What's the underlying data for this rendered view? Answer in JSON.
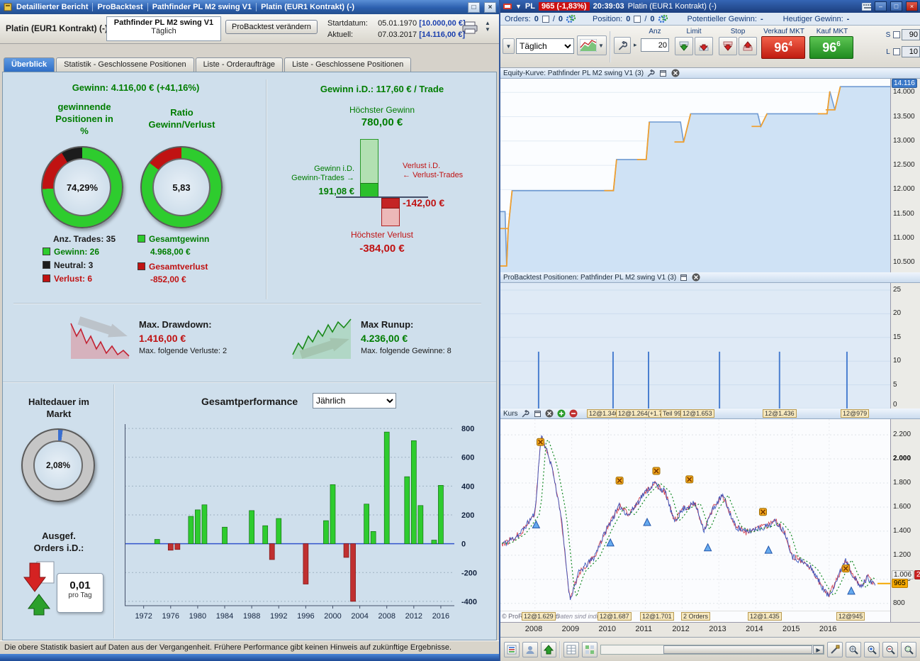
{
  "colors": {
    "panel_bg": "#cfdfec",
    "accent_blue": "#3a78c8",
    "green": "#007d00",
    "bright_green": "#2ecc2e",
    "red": "#c01212",
    "sell_red": "#d92414",
    "buy_green": "#2a9c2a",
    "badge_orange": "#f5a800"
  },
  "left_window": {
    "titlebar_tabs": [
      "Detaillierter Bericht",
      "ProBacktest",
      "Pathfinder PL M2 swing V1",
      "Platin (EUR1 Kontrakt) (-)"
    ],
    "header": {
      "instrument": "Platin (EUR1 Kontrakt) (-)",
      "strategy": "Pathfinder PL M2 swing V1",
      "timeframe": "Täglich",
      "edit_button": "ProBacktest verändern",
      "start_label": "Startdatum:",
      "start_date": "05.01.1970",
      "start_value": "[10.000,00 €]",
      "current_label": "Aktuell:",
      "current_date": "07.03.2017",
      "current_value": "[14.116,00 €]"
    },
    "tabs": [
      "Überblick",
      "Statistik - Geschlossene Positionen",
      "Liste - Orderaufträge",
      "Liste - Geschlossene Positionen"
    ],
    "overview": {
      "gewinn_label": "Gewinn:",
      "gewinn_value": "4.116,00 €",
      "gewinn_pct": "(+41,16%)",
      "winning_label_1": "gewinnende",
      "winning_label_2": "Positionen in",
      "winning_label_3": "%",
      "winning_value": "74,29%",
      "ratio_label_1": "Ratio",
      "ratio_label_2": "Gewinn/Verlust",
      "ratio_value": "5,83",
      "anz_trades": "Anz. Trades: 35",
      "legend": [
        {
          "label": "Gewinn: 26",
          "color": "#2ecc2e",
          "text_color": "#007d00"
        },
        {
          "label": "Neutral: 3",
          "color": "#1c1c1c",
          "text_color": "#1a1a1a"
        },
        {
          "label": "Verlust: 6",
          "color": "#c01212",
          "text_color": "#c01212"
        }
      ],
      "gesamtgewinn_label": "Gesamtgewinn",
      "gesamtgewinn_value": "4.968,00 €",
      "gesamtverlust_label": "Gesamtverlust",
      "gesamtverlust_value": "-852,00 €",
      "gewinn_id_label": "Gewinn i.D.:",
      "gewinn_id_value": "117,60 € / Trade",
      "hoechster_gewinn_label": "Höchster Gewinn",
      "hoechster_gewinn_value": "780,00 €",
      "gewinn_trades_label_1": "Gewinn i.D.",
      "gewinn_trades_label_2": "Gewinn-Trades",
      "gewinn_trades_value": "191,08 €",
      "verlust_trades_label_1": "Verlust i.D.",
      "verlust_trades_label_2": "Verlust-Trades",
      "verlust_trades_value": "-142,00 €",
      "hoechster_verlust_label": "Höchster Verlust",
      "hoechster_verlust_value": "-384,00 €"
    },
    "risk": {
      "drawdown_label": "Max. Drawdown:",
      "drawdown_value": "1.416,00 €",
      "drawdown_sub": "Max. folgende Verluste: 2",
      "runup_label": "Max Runup:",
      "runup_value": "4.236,00 €",
      "runup_sub": "Max. folgende Gewinne: 8"
    },
    "holding": {
      "label_1": "Haltedauer im",
      "label_2": "Markt",
      "value": "2,08%",
      "orders_label_1": "Ausgef.",
      "orders_label_2": "Orders i.D.:",
      "orders_value": "0,01",
      "orders_unit": "pro Tag"
    },
    "performance_title": "Gesamtperformance",
    "performance_period": "Jährlich",
    "statusbar": "Die obere Statistik basiert auf Daten aus der Vergangenheit. Frühere Performance gibt keinen Hinweis auf zukünftige Ergebnisse."
  },
  "right_window": {
    "titlebar": {
      "symbol": "PL",
      "price_badge": "965 (-1,83%)",
      "time": "20:39:03",
      "instrument": "Platin (EUR1 Kontrakt) (-)"
    },
    "status_row": {
      "orders_label": "Orders:",
      "orders_count": "0",
      "orders_count2": "0",
      "position_label": "Position:",
      "position_count": "0",
      "position_count2": "0",
      "pot_label": "Potentieller Gewinn:",
      "pot_value": "-",
      "heut_label": "Heutiger Gewinn:",
      "heut_value": "-"
    },
    "toolbar": {
      "timeframe": "Täglich",
      "anz_label": "Anz",
      "anz_value": "20",
      "limit_label": "Limit",
      "stop_label": "Stop",
      "sell_label": "Verkauf MKT",
      "sell_big": "96",
      "sell_small": "4",
      "buy_label": "Kauf MKT",
      "buy_big": "96",
      "buy_small": "6",
      "s_label": "S",
      "s_value": "90",
      "l_label": "L",
      "l_value": "10"
    },
    "equity_panel_title": "Equity-Kurve: Pathfinder PL M2 swing V1 (3)",
    "positions_panel_title": "ProBacktest Positionen: Pathfinder PL M2 swing V1 (3)",
    "price_panel": {
      "title": "Kurs",
      "top_labels": [
        {
          "text": "12@1.346",
          "x": 122
        },
        {
          "text": "12@1.264(+1.7)",
          "x": 163
        },
        {
          "text": "Teil 99+",
          "x": 226
        },
        {
          "text": "12@1.653",
          "x": 254
        },
        {
          "text": "12@1.436",
          "x": 370
        },
        {
          "text": "12@979",
          "x": 480
        }
      ],
      "bottom_labels": [
        {
          "text": "12@1.629",
          "x": 30
        },
        {
          "text": "12@1.687",
          "x": 137
        },
        {
          "text": "12@1.701",
          "x": 197
        },
        {
          "text": "2 Orders",
          "x": 255
        },
        {
          "text": "12@1.435",
          "x": 349
        },
        {
          "text": "12@945",
          "x": 474
        }
      ],
      "copyright": "© ProRealTime.com",
      "disclaimer": "Daten sind indikativ",
      "axis_badges": [
        {
          "text": "1.006",
          "bg": "#f0f0f0",
          "fg": "#222222",
          "value": 1035
        },
        {
          "text": "28",
          "bg": "#cc2222",
          "fg": "#ffffff",
          "value": 1035
        },
        {
          "text": "965",
          "bg": "#f5a800",
          "fg": "#000000",
          "value": 965
        }
      ]
    }
  },
  "chart_data": [
    {
      "id": "winning_positions_donut",
      "type": "pie",
      "title": "gewinnende Positionen in %",
      "labels": [
        "Gewinn",
        "Verlust",
        "Neutral"
      ],
      "values": [
        74.29,
        17.14,
        8.57
      ],
      "colors": [
        "#2ecc2e",
        "#c01212",
        "#1c1c1c"
      ],
      "center_label": "74,29%"
    },
    {
      "id": "ratio_donut",
      "type": "pie",
      "title": "Ratio Gewinn/Verlust",
      "labels": [
        "Gesamtgewinn",
        "Gesamtverlust"
      ],
      "values": [
        85.36,
        14.64
      ],
      "colors": [
        "#2ecc2e",
        "#c01212"
      ],
      "center_label": "5,83"
    },
    {
      "id": "holding_donut",
      "type": "pie",
      "title": "Haltedauer im Markt",
      "labels": [
        "im Markt",
        "nicht im Markt"
      ],
      "values": [
        2.08,
        97.92
      ],
      "colors": [
        "#3a6fd0",
        "#c6c6c6"
      ],
      "center_label": "2,08%"
    },
    {
      "id": "avg_trade_bars",
      "type": "bar",
      "title": "Gewinn i.D.: 117,60 € / Trade",
      "categories": [
        "Höchster Gewinn",
        "Gewinn i.D. Gewinn-Trades",
        "Verlust i.D. Verlust-Trades",
        "Höchster Verlust"
      ],
      "values": [
        780,
        191.08,
        -142,
        -384
      ]
    },
    {
      "id": "yearly_performance",
      "type": "bar",
      "title": "Gesamtperformance (Jährlich)",
      "x": [
        1974,
        1976,
        1977,
        1979,
        1980,
        1981,
        1984,
        1988,
        1990,
        1991,
        1992,
        1996,
        1999,
        2000,
        2002,
        2003,
        2005,
        2006,
        2008,
        2011,
        2012,
        2013,
        2015,
        2016
      ],
      "values": [
        30,
        -45,
        -40,
        190,
        235,
        270,
        115,
        230,
        125,
        -110,
        175,
        -280,
        160,
        410,
        -95,
        -400,
        275,
        85,
        775,
        465,
        715,
        265,
        25,
        405
      ],
      "xticks": [
        1972,
        1976,
        1980,
        1984,
        1988,
        1992,
        1996,
        2000,
        2004,
        2008,
        2012,
        2016
      ],
      "yticks": [
        800,
        600,
        400,
        200,
        0,
        -200,
        -400
      ],
      "xlim": [
        1969.2,
        2018
      ],
      "ylim": [
        -430,
        830
      ],
      "pos_color": "#2ecc2e",
      "neg_color": "#c03030",
      "zero_line_color": "#3355cc"
    },
    {
      "id": "equity_curve",
      "type": "area",
      "title": "Equity-Kurve: Pathfinder PL M2 swing V1 (3)",
      "points": [
        [
          0.0,
          11550
        ],
        [
          0.012,
          11550
        ],
        [
          0.016,
          10430
        ],
        [
          0.02,
          11200
        ],
        [
          0.03,
          11980
        ],
        [
          0.29,
          11980
        ],
        [
          0.298,
          12620
        ],
        [
          0.374,
          12620
        ],
        [
          0.382,
          13390
        ],
        [
          0.462,
          13390
        ],
        [
          0.47,
          12980
        ],
        [
          0.488,
          13560
        ],
        [
          0.66,
          13560
        ],
        [
          0.668,
          13300
        ],
        [
          0.684,
          13560
        ],
        [
          0.838,
          13560
        ],
        [
          0.845,
          14020
        ],
        [
          0.858,
          13640
        ],
        [
          0.872,
          14116
        ],
        [
          1.0,
          14116
        ]
      ],
      "ylim": [
        10300,
        14280
      ],
      "yticks": [
        14000,
        13500,
        13000,
        12500,
        12000,
        11500,
        11000,
        10500
      ],
      "current": 14116,
      "line_color": "#6f9ad2",
      "fill_color": "#cfe2f5",
      "open_trade_color": "#f0a030"
    },
    {
      "id": "open_positions",
      "type": "bar",
      "title": "ProBacktest Positionen: Pathfinder PL M2 swing V1 (3)",
      "x": [
        0.098,
        0.289,
        0.38,
        0.562,
        0.716,
        0.889
      ],
      "values": [
        12,
        12,
        12,
        12,
        12,
        12
      ],
      "ylim": [
        0,
        26.5
      ],
      "yticks": [
        25,
        20,
        15,
        10,
        5,
        0
      ],
      "color": "#4a7fd0"
    },
    {
      "id": "price_chart",
      "type": "candlestick",
      "title": "Kurs Platin (EUR1 Kontrakt) Täglich",
      "x_range": [
        2007.06,
        2017.66
      ],
      "ylim": [
        740,
        2330
      ],
      "yticks": [
        2200,
        2000,
        1800,
        1600,
        1400,
        1200,
        1000,
        800
      ],
      "xticks": [
        2008,
        2009,
        2010,
        2011,
        2012,
        2013,
        2014,
        2015,
        2016
      ],
      "waypoints": [
        [
          2007.2,
          1300
        ],
        [
          2007.6,
          1380
        ],
        [
          2008.0,
          1550
        ],
        [
          2008.17,
          2200
        ],
        [
          2008.45,
          1950
        ],
        [
          2008.7,
          1550
        ],
        [
          2008.95,
          830
        ],
        [
          2009.2,
          1060
        ],
        [
          2009.6,
          1180
        ],
        [
          2009.95,
          1420
        ],
        [
          2010.3,
          1610
        ],
        [
          2010.55,
          1530
        ],
        [
          2010.9,
          1690
        ],
        [
          2011.25,
          1800
        ],
        [
          2011.55,
          1720
        ],
        [
          2011.78,
          1480
        ],
        [
          2012.05,
          1590
        ],
        [
          2012.35,
          1630
        ],
        [
          2012.6,
          1410
        ],
        [
          2012.85,
          1590
        ],
        [
          2013.1,
          1700
        ],
        [
          2013.45,
          1440
        ],
        [
          2013.75,
          1390
        ],
        [
          2014.0,
          1420
        ],
        [
          2014.3,
          1440
        ],
        [
          2014.55,
          1480
        ],
        [
          2014.8,
          1390
        ],
        [
          2015.0,
          1190
        ],
        [
          2015.3,
          1140
        ],
        [
          2015.55,
          1080
        ],
        [
          2015.8,
          940
        ],
        [
          2015.98,
          860
        ],
        [
          2016.2,
          990
        ],
        [
          2016.45,
          1170
        ],
        [
          2016.65,
          1030
        ],
        [
          2016.85,
          930
        ],
        [
          2017.05,
          1020
        ],
        [
          2017.2,
          965
        ]
      ],
      "last_price": 965,
      "exit_markers": [
        [
          2008.15,
          2140
        ],
        [
          2010.3,
          1820
        ],
        [
          2011.3,
          1900
        ],
        [
          2012.2,
          1830
        ],
        [
          2014.2,
          1560
        ],
        [
          2016.45,
          1090
        ]
      ],
      "entry_markers": [
        [
          2008.03,
          1450
        ],
        [
          2010.05,
          1300
        ],
        [
          2011.05,
          1470
        ],
        [
          2012.7,
          1260
        ],
        [
          2014.35,
          1240
        ],
        [
          2016.6,
          900
        ]
      ],
      "colors": {
        "up": "#3350bb",
        "down": "#cc2233",
        "ma": "#118822"
      }
    }
  ]
}
